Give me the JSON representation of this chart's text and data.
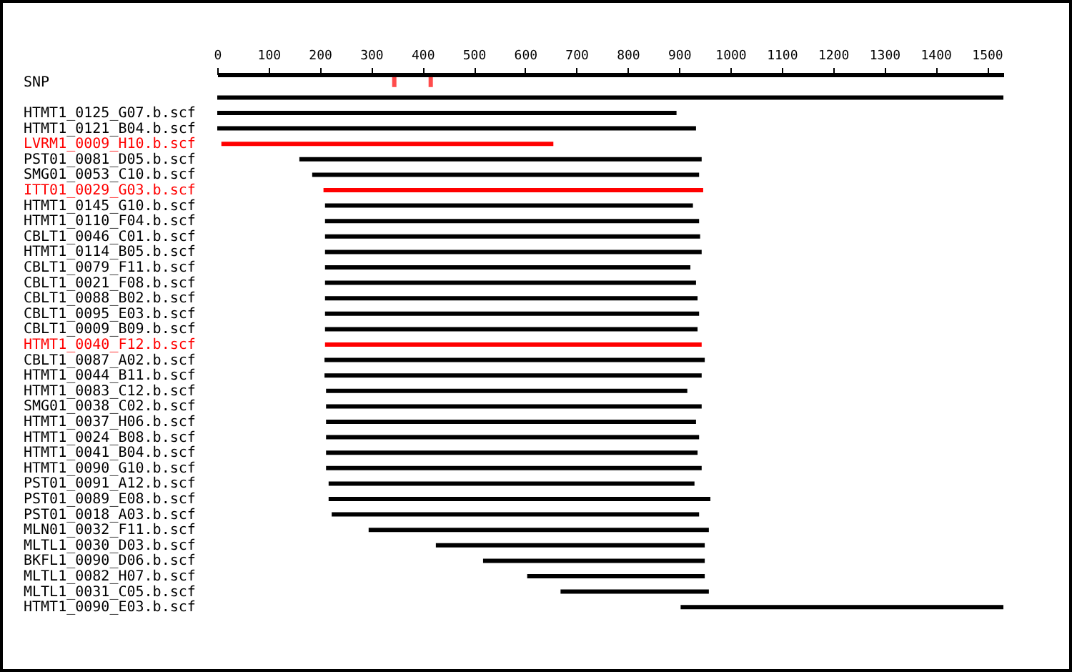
{
  "chart_data": {
    "type": "bar",
    "orientation": "horizontal",
    "xlim": [
      0,
      1532
    ],
    "xticks": [
      0,
      100,
      200,
      300,
      400,
      500,
      600,
      700,
      800,
      900,
      1000,
      1100,
      1200,
      1300,
      1400,
      1500
    ],
    "grid": false,
    "categories": [
      "SNP",
      null,
      "HTMT1_0125_G07.b.scf",
      "HTMT1_0121_B04.b.scf",
      "LVRM1_0009_H10.b.scf",
      "PST01_0081_D05.b.scf",
      "SMG01_0053_C10.b.scf",
      "ITT01_0029_G03.b.scf",
      "HTMT1_0145_G10.b.scf",
      "HTMT1_0110_F04.b.scf",
      "CBLT1_0046_C01.b.scf",
      "HTMT1_0114_B05.b.scf",
      "CBLT1_0079_F11.b.scf",
      "CBLT1_0021_F08.b.scf",
      "CBLT1_0088_B02.b.scf",
      "CBLT1_0095_E03.b.scf",
      "CBLT1_0009_B09.b.scf",
      "HTMT1_0040_F12.b.scf",
      "CBLT1_0087_A02.b.scf",
      "HTMT1_0044_B11.b.scf",
      "HTMT1_0083_C12.b.scf",
      "SMG01_0038_C02.b.scf",
      "HTMT1_0037_H06.b.scf",
      "HTMT1_0024_B08.b.scf",
      "HTMT1_0041_B04.b.scf",
      "HTMT1_0090_G10.b.scf",
      "PST01_0091_A12.b.scf",
      "PST01_0089_E08.b.scf",
      "PST01_0018_A03.b.scf",
      "MLN01_0032_F11.b.scf",
      "MLTL1_0030_D03.b.scf",
      "BKFL1_0090_D06.b.scf",
      "MLTL1_0082_H07.b.scf",
      "MLTL1_0031_C05.b.scf",
      "HTMT1_0090_E03.b.scf"
    ],
    "base": [
      null,
      0,
      0,
      0,
      8,
      160,
      185,
      207,
      210,
      210,
      210,
      210,
      210,
      210,
      210,
      210,
      210,
      210,
      209,
      209,
      212,
      212,
      212,
      212,
      212,
      212,
      217,
      217,
      223,
      295,
      426,
      518,
      604,
      669,
      903
    ],
    "values": [
      null,
      1532,
      895,
      933,
      647,
      784,
      754,
      740,
      717,
      729,
      731,
      734,
      712,
      723,
      726,
      729,
      726,
      734,
      741,
      735,
      704,
      732,
      721,
      727,
      724,
      732,
      713,
      744,
      716,
      663,
      524,
      432,
      346,
      289,
      629
    ],
    "colors": [
      "#000000",
      "#000000",
      "#000000",
      "#000000",
      "#ff0000",
      "#000000",
      "#000000",
      "#ff0000",
      "#000000",
      "#000000",
      "#000000",
      "#000000",
      "#000000",
      "#000000",
      "#000000",
      "#000000",
      "#000000",
      "#ff0000",
      "#000000",
      "#000000",
      "#000000",
      "#000000",
      "#000000",
      "#000000",
      "#000000",
      "#000000",
      "#000000",
      "#000000",
      "#000000",
      "#000000",
      "#000000",
      "#000000",
      "#000000",
      "#000000",
      "#000000"
    ],
    "series": [
      {
        "type": "scatter",
        "marker": "square",
        "color": "#ff0000",
        "x": [
          "SNP",
          "SNP"
        ],
        "values": [
          345,
          416
        ]
      }
    ]
  }
}
